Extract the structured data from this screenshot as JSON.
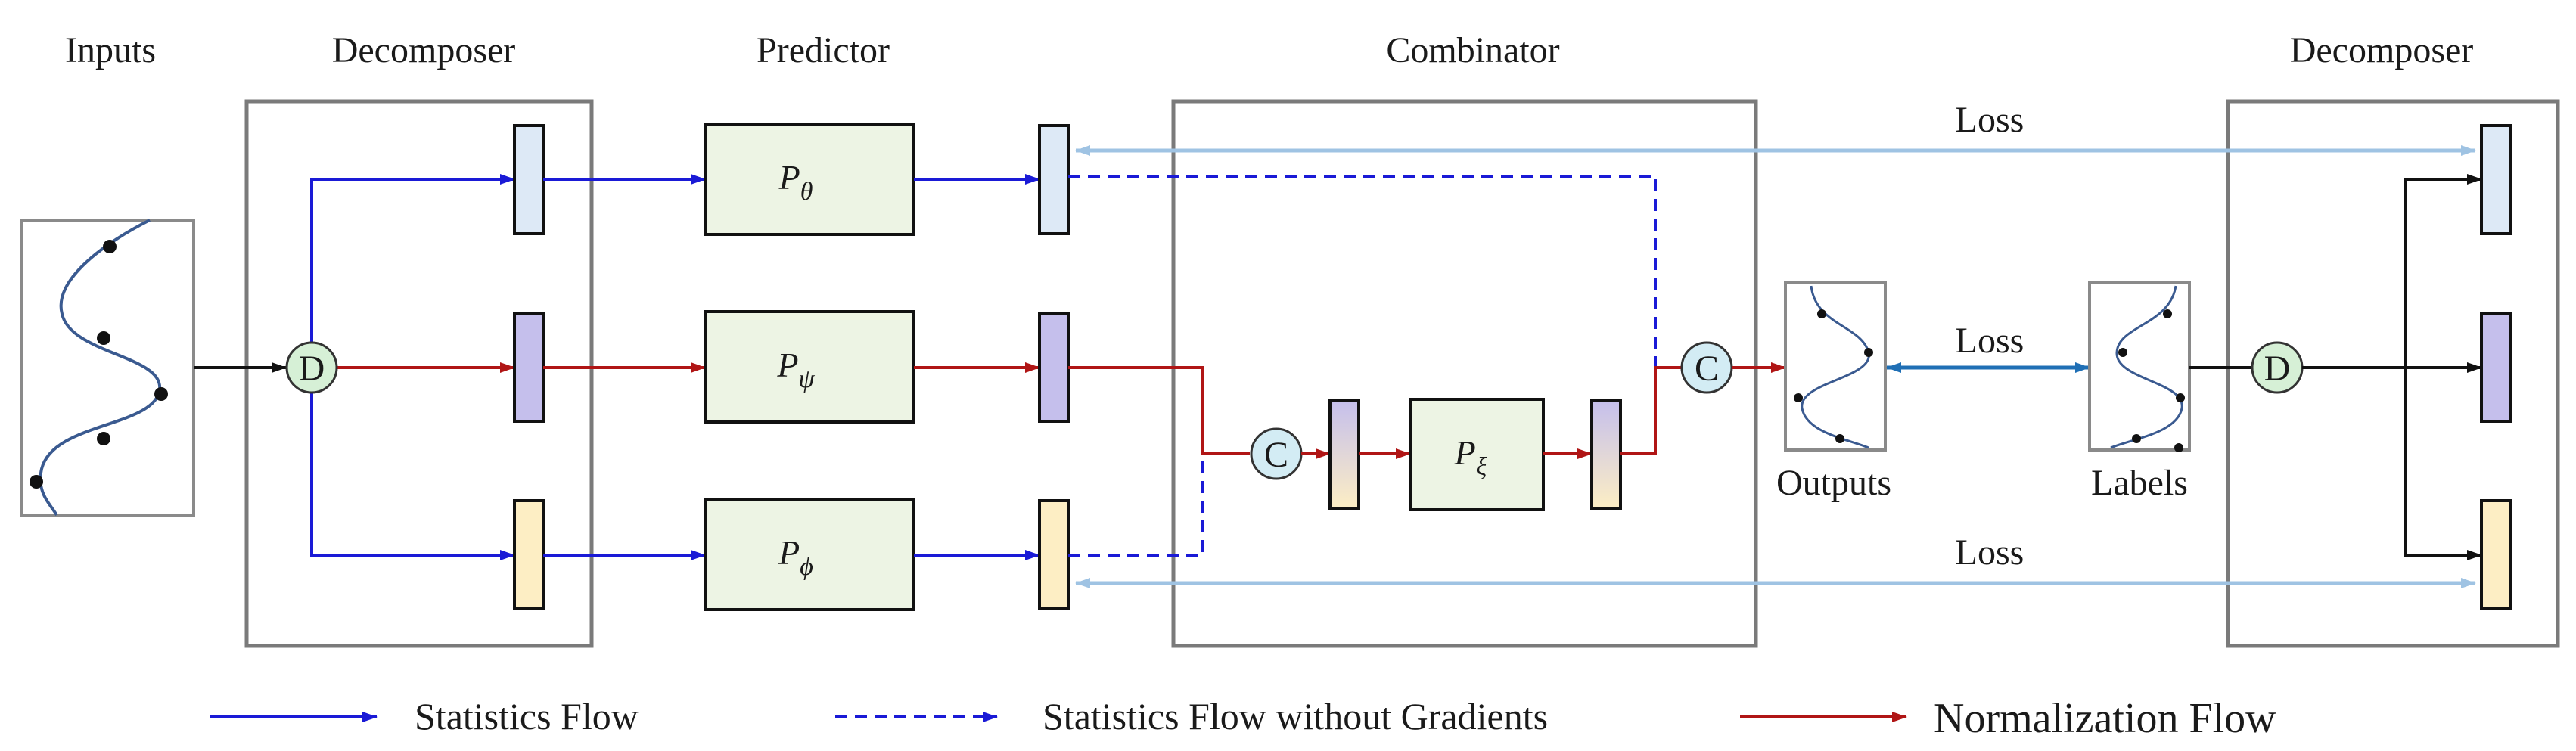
{
  "sections": {
    "inputs": "Inputs",
    "decomposer_left": "Decomposer",
    "predictor": "Predictor",
    "combinator": "Combinator",
    "decomposer_right": "Decomposer"
  },
  "predictors": {
    "theta": {
      "symbol": "P",
      "subscript": "θ"
    },
    "psi": {
      "symbol": "P",
      "subscript": "ψ"
    },
    "phi": {
      "symbol": "P",
      "subscript": "ϕ"
    },
    "xi": {
      "symbol": "P",
      "subscript": "ξ"
    }
  },
  "operators": {
    "decompose": "D",
    "combine": "C"
  },
  "losses": {
    "top": "Loss",
    "middle": "Loss",
    "bottom": "Loss"
  },
  "labels": {
    "outputs": "Outputs",
    "labels": "Labels"
  },
  "legend": {
    "statistics_flow": "Statistics Flow",
    "statistics_flow_no_grad": "Statistics Flow without Gradients",
    "normalization_flow": "Normalization Flow"
  },
  "colors": {
    "statistics_flow": "#1a1ad6",
    "normalization_flow": "#b01515",
    "loss_light": "#9fc3e3",
    "loss_dark": "#1f6fb5",
    "stat_block_top": "#dde9f6",
    "norm_block": "#c5bfec",
    "stat_block_bottom": "#fdeec4",
    "predictor_fill": "#edf4e4",
    "operator_fill": "#d6f0d6",
    "combine_fill": "#d3ecf4",
    "frame": "#7a7a7a",
    "curve": "#3a5a90"
  }
}
